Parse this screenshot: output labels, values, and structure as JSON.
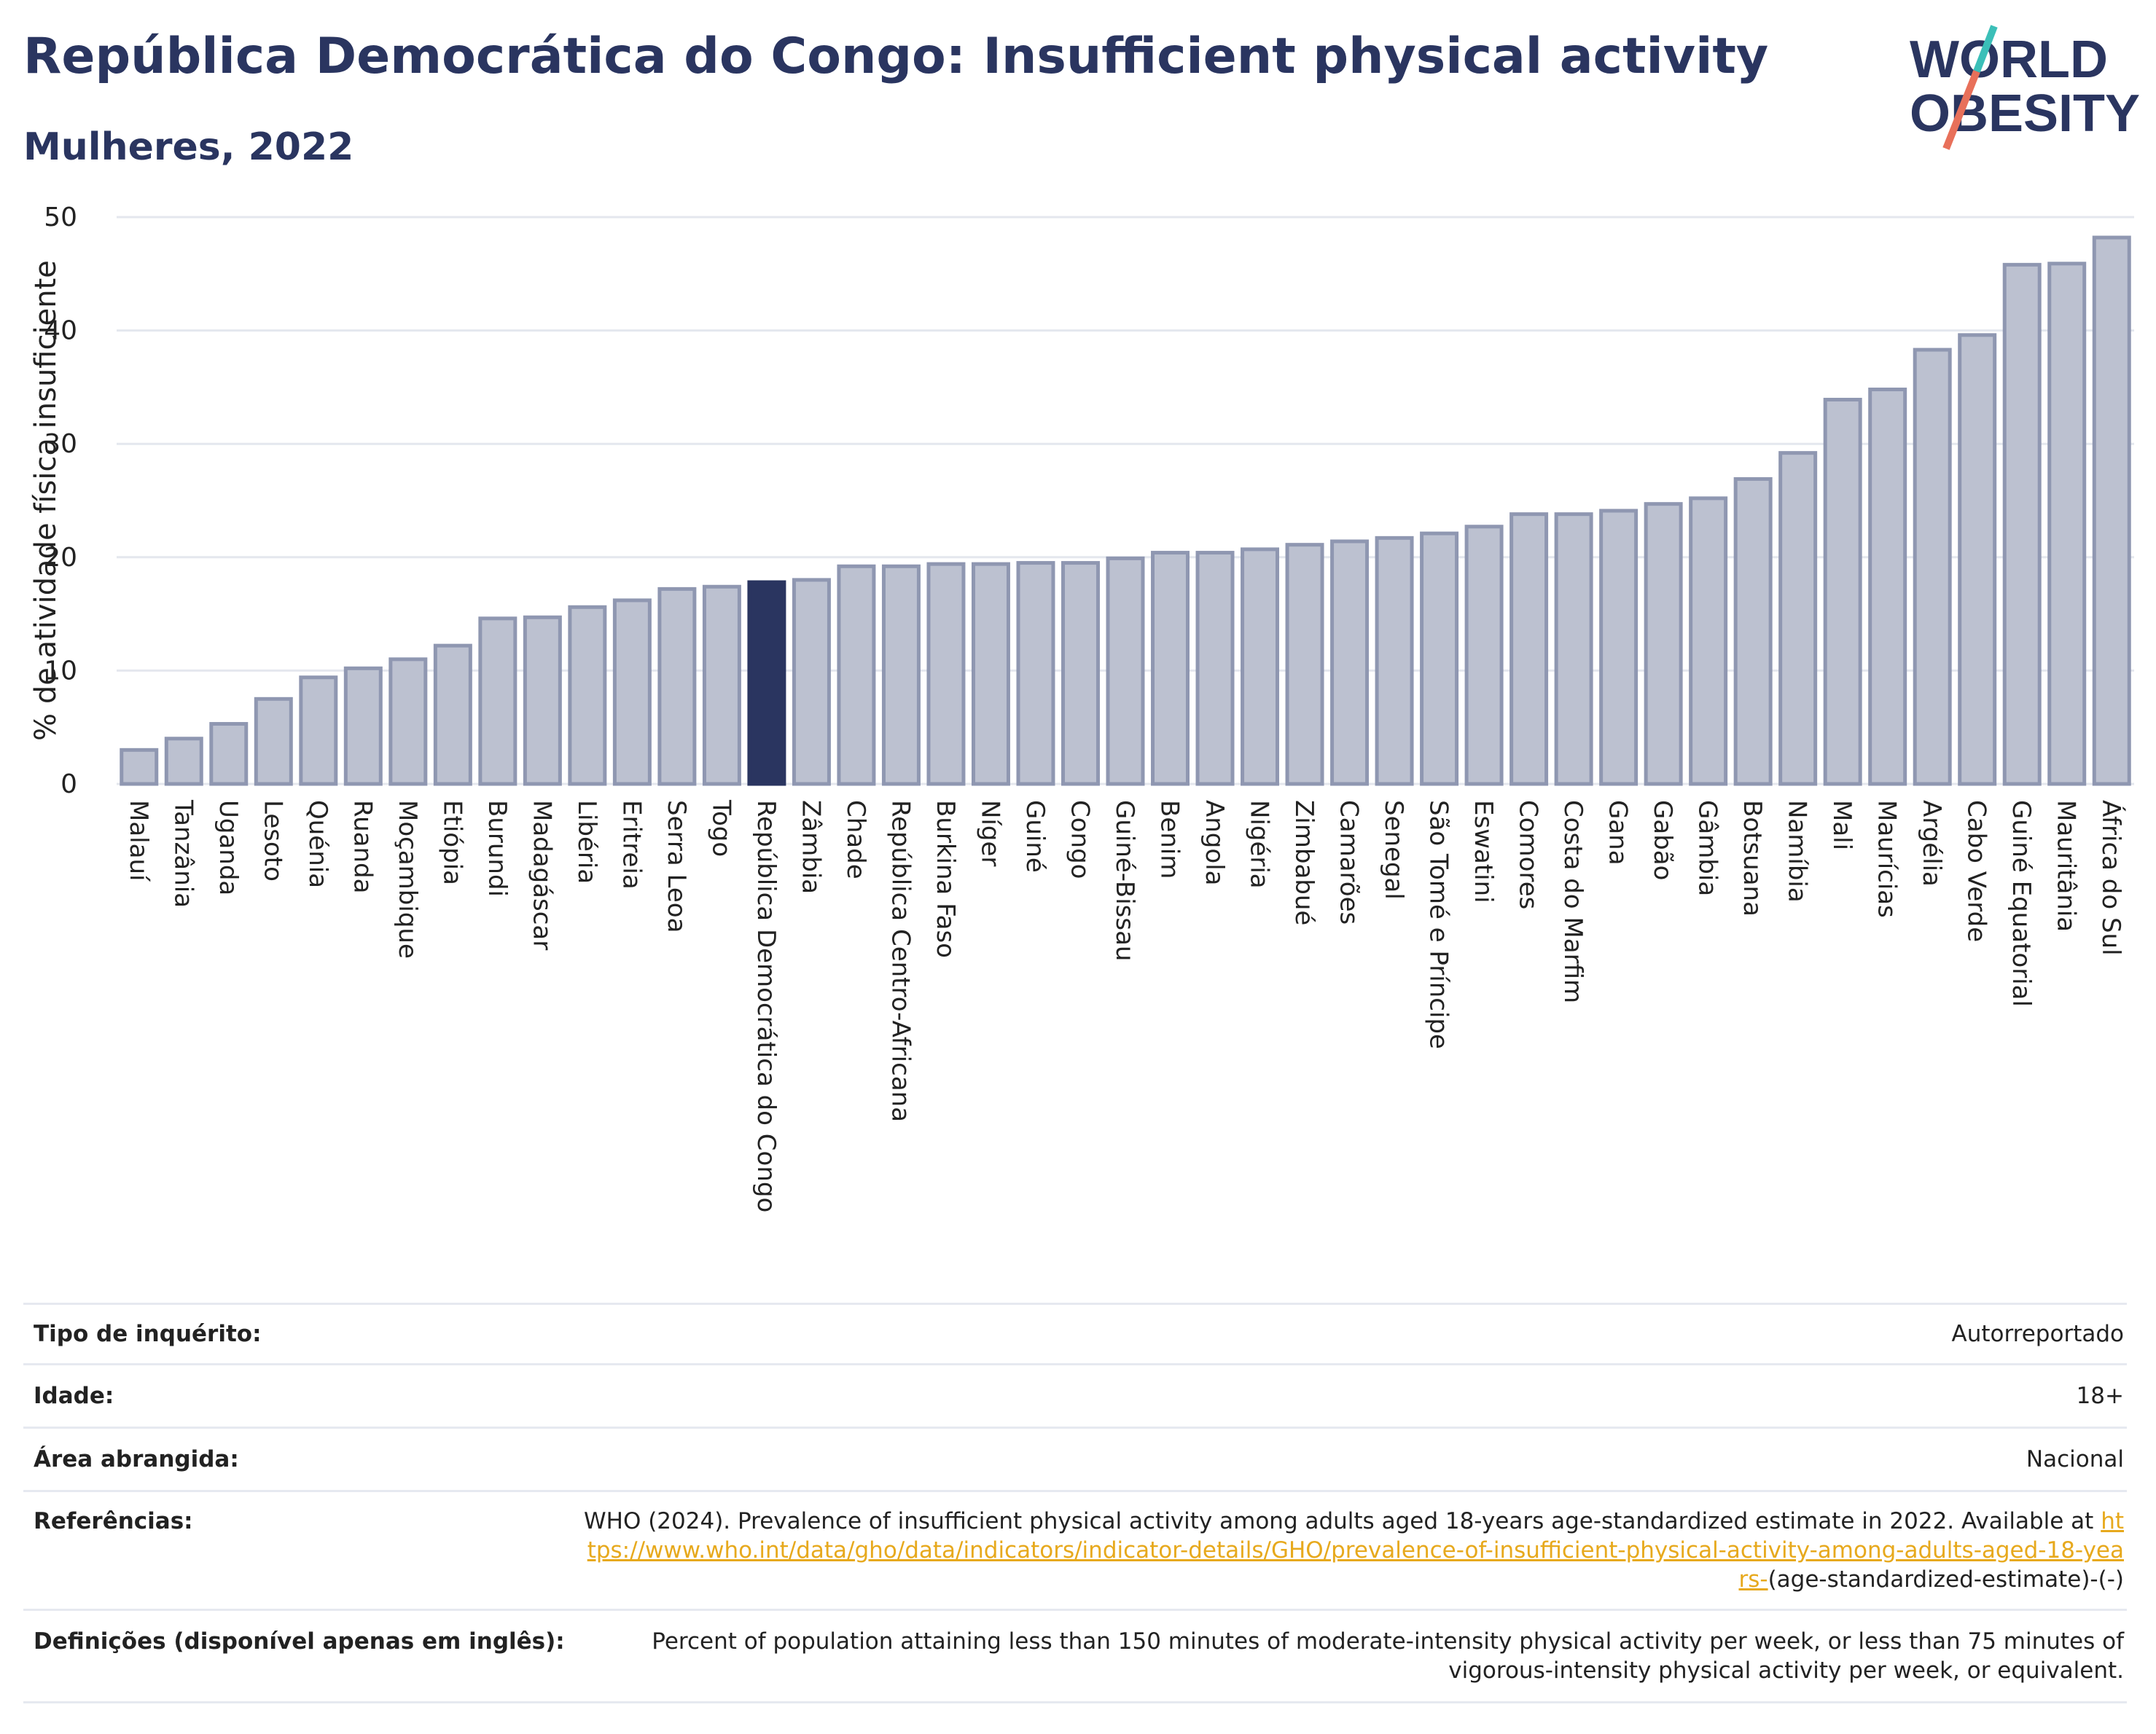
{
  "header": {
    "title": "República Democrática do Congo: Insufficient physical activity",
    "subtitle": "Mulheres, 2022",
    "logo_line1": "WORLD",
    "logo_line2": "OBESITY"
  },
  "colors": {
    "bar_default": "#bcc1d0",
    "bar_default_stroke": "#8f97b1",
    "bar_highlight": "#2a3560",
    "title": "#2a3560",
    "link": "#e7a91d",
    "logo_teal": "#3bbfb8",
    "logo_coral": "#e8705a"
  },
  "chart_data": {
    "type": "bar",
    "ylabel": "% de atividade física insuficiente",
    "ylim": [
      0,
      50
    ],
    "yticks": [
      0,
      10,
      20,
      30,
      40,
      50
    ],
    "grid": true,
    "highlight": "República Democrática do Congo",
    "categories": [
      "Malauí",
      "Tanzânia",
      "Uganda",
      "Lesoto",
      "Quénia",
      "Ruanda",
      "Moçambique",
      "Etiópia",
      "Burundi",
      "Madagáscar",
      "Libéria",
      "Eritreia",
      "Serra Leoa",
      "Togo",
      "República Democrática do Congo",
      "Zâmbia",
      "Chade",
      "República Centro-Africana",
      "Burkina Faso",
      "Níger",
      "Guiné",
      "Congo",
      "Guiné-Bissau",
      "Benim",
      "Angola",
      "Nigéria",
      "Zimbabué",
      "Camarões",
      "Senegal",
      "São Tomé e Príncipe",
      "Eswatini",
      "Comores",
      "Costa do Marfim",
      "Gana",
      "Gabão",
      "Gâmbia",
      "Botsuana",
      "Namíbia",
      "Mali",
      "Maurícias",
      "Argélia",
      "Cabo Verde",
      "Guiné Equatorial",
      "Mauritânia",
      "África do Sul"
    ],
    "values": [
      3.0,
      4.0,
      5.3,
      7.5,
      9.4,
      10.2,
      11.0,
      12.2,
      14.6,
      14.7,
      15.6,
      16.2,
      17.2,
      17.4,
      17.8,
      18.0,
      19.2,
      19.2,
      19.4,
      19.4,
      19.5,
      19.5,
      19.9,
      20.4,
      20.4,
      20.7,
      21.1,
      21.4,
      21.7,
      22.1,
      22.7,
      23.8,
      23.8,
      24.1,
      24.7,
      25.2,
      26.9,
      29.2,
      33.9,
      34.8,
      38.3,
      39.6,
      45.8,
      45.9,
      48.2
    ]
  },
  "info": {
    "survey_label": "Tipo de inquérito:",
    "survey_value": "Autorreportado",
    "age_label": "Idade:",
    "age_value": "18+",
    "area_label": "Área abrangida:",
    "area_value": "Nacional",
    "ref_label": "Referências:",
    "ref_text": "WHO (2024). Prevalence of insufficient physical activity among adults aged 18-years age-standardized estimate in 2022. Available at",
    "ref_link": "https://www.who.int/data/gho/data/indicators/indicator-details/GHO/prevalence-of-insufficient-physical-activity-among-adults-aged-18-years-",
    "ref_suffix": "(age-standardized-estimate)-(-)",
    "def_label": "Definições (disponível apenas em inglês):",
    "def_text": "Percent of population attaining less than 150 minutes of moderate-intensity physical activity per week, or less than 75 minutes of vigorous-intensity physical activity per week, or equivalent."
  }
}
